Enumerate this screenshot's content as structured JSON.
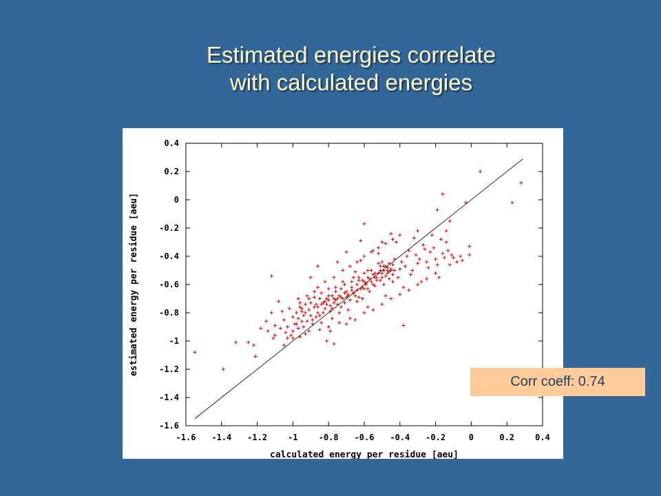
{
  "slide": {
    "title_line1": "Estimated energies correlate",
    "title_line2": "with calculated energies",
    "corr_label": "Corr coeff: 0.74"
  },
  "colors": {
    "background": "#336699",
    "title": "#ffffcc",
    "points": "#dd0000",
    "fit_line": "#000000",
    "corr_box": "#ffcc99"
  },
  "chart_data": {
    "type": "scatter",
    "xlabel": "calculated energy per residue [aeu]",
    "ylabel": "estimated energy per residue [aeu]",
    "xlim": [
      -1.6,
      0.4
    ],
    "ylim": [
      -1.6,
      0.4
    ],
    "xticks": [
      "-1.6",
      "-1.4",
      "-1.2",
      "-1",
      "-0.8",
      "-0.6",
      "-0.4",
      "-0.2",
      "0",
      "0.2",
      "0.4"
    ],
    "yticks": [
      "0.4",
      "0.2",
      "0",
      "-0.2",
      "-0.4",
      "-0.6",
      "-0.8",
      "-1",
      "-1.2",
      "-1.4",
      "-1.6"
    ],
    "marker": "+",
    "fit_line": {
      "x": [
        -1.55,
        0.29
      ],
      "y": [
        -1.55,
        0.29
      ]
    },
    "series": [
      {
        "points": [
          [
            -1.55,
            -1.08
          ],
          [
            -1.39,
            -1.2
          ],
          [
            -1.32,
            -1.01
          ],
          [
            -1.25,
            -1.01
          ],
          [
            -1.22,
            -1.03
          ],
          [
            -1.21,
            -1.11
          ],
          [
            -1.12,
            -0.54
          ],
          [
            -0.81,
            -1.0
          ],
          [
            -0.77,
            -1.02
          ],
          [
            0.05,
            0.2
          ],
          [
            0.23,
            -0.02
          ],
          [
            0.28,
            0.12
          ],
          [
            -0.16,
            0.04
          ],
          [
            -0.03,
            -0.02
          ],
          [
            -0.19,
            -0.07
          ],
          [
            -0.6,
            -0.17
          ],
          [
            -0.12,
            -0.15
          ],
          [
            -0.01,
            -0.33
          ],
          [
            -0.01,
            -0.39
          ],
          [
            -0.38,
            -0.89
          ],
          [
            -0.05,
            -0.43
          ],
          [
            -0.14,
            -0.22
          ],
          [
            -1.18,
            -0.91
          ],
          [
            -1.15,
            -0.86
          ],
          [
            -1.1,
            -0.96
          ],
          [
            -1.05,
            -1.03
          ],
          [
            -1.0,
            -0.93
          ],
          [
            -0.97,
            -0.7
          ],
          [
            -0.98,
            -0.88
          ],
          [
            -0.95,
            -0.79
          ],
          [
            -0.93,
            -0.95
          ],
          [
            -0.9,
            -0.73
          ],
          [
            -0.88,
            -0.65
          ],
          [
            -0.85,
            -0.82
          ],
          [
            -0.82,
            -0.72
          ],
          [
            -0.8,
            -0.9
          ],
          [
            -0.78,
            -0.77
          ],
          [
            -0.76,
            -0.62
          ],
          [
            -0.74,
            -0.8
          ],
          [
            -0.72,
            -0.58
          ],
          [
            -0.7,
            -0.69
          ],
          [
            -0.68,
            -0.84
          ],
          [
            -0.66,
            -0.55
          ],
          [
            -0.64,
            -0.72
          ],
          [
            -0.62,
            -0.43
          ],
          [
            -0.6,
            -0.63
          ],
          [
            -0.58,
            -0.76
          ],
          [
            -0.56,
            -0.5
          ],
          [
            -0.54,
            -0.61
          ],
          [
            -0.52,
            -0.38
          ],
          [
            -0.5,
            -0.55
          ],
          [
            -0.48,
            -0.68
          ],
          [
            -0.46,
            -0.45
          ],
          [
            -0.44,
            -0.58
          ],
          [
            -0.42,
            -0.3
          ],
          [
            -0.4,
            -0.49
          ],
          [
            -0.38,
            -0.62
          ],
          [
            -0.36,
            -0.4
          ],
          [
            -0.34,
            -0.53
          ],
          [
            -0.32,
            -0.27
          ],
          [
            -0.3,
            -0.45
          ],
          [
            -0.28,
            -0.58
          ],
          [
            -0.26,
            -0.35
          ],
          [
            -0.24,
            -0.48
          ],
          [
            -0.22,
            -0.25
          ],
          [
            -0.2,
            -0.42
          ],
          [
            -0.18,
            -0.55
          ],
          [
            -0.16,
            -0.38
          ],
          [
            -0.14,
            -0.3
          ],
          [
            -0.12,
            -0.46
          ],
          [
            -0.1,
            -0.41
          ],
          [
            -0.08,
            -0.44
          ],
          [
            -0.06,
            -0.4
          ],
          [
            -0.3,
            -0.22
          ],
          [
            -0.45,
            -0.24
          ],
          [
            -0.5,
            -0.3
          ],
          [
            -0.55,
            -0.36
          ],
          [
            -0.62,
            -0.29
          ],
          [
            -0.7,
            -0.37
          ],
          [
            -0.75,
            -0.44
          ],
          [
            -0.86,
            -0.47
          ],
          [
            -0.9,
            -0.55
          ],
          [
            -1.08,
            -0.72
          ],
          [
            -1.05,
            -0.85
          ],
          [
            -1.02,
            -0.77
          ],
          [
            -0.95,
            -0.86
          ],
          [
            -0.92,
            -0.68
          ],
          [
            -0.87,
            -0.74
          ],
          [
            -0.84,
            -0.87
          ],
          [
            -0.8,
            -0.68
          ],
          [
            -0.78,
            -0.84
          ],
          [
            -0.76,
            -0.71
          ],
          [
            -0.73,
            -0.76
          ],
          [
            -0.71,
            -0.66
          ],
          [
            -0.69,
            -0.78
          ],
          [
            -0.67,
            -0.64
          ],
          [
            -0.65,
            -0.68
          ],
          [
            -0.63,
            -0.57
          ],
          [
            -0.61,
            -0.7
          ],
          [
            -0.59,
            -0.59
          ],
          [
            -0.57,
            -0.65
          ],
          [
            -0.55,
            -0.53
          ],
          [
            -0.53,
            -0.57
          ],
          [
            -0.51,
            -0.47
          ],
          [
            -0.49,
            -0.6
          ],
          [
            -0.47,
            -0.52
          ],
          [
            -0.45,
            -0.49
          ],
          [
            -0.43,
            -0.42
          ],
          [
            -0.41,
            -0.55
          ],
          [
            -0.39,
            -0.44
          ],
          [
            -0.37,
            -0.47
          ],
          [
            -0.35,
            -0.36
          ],
          [
            -0.33,
            -0.5
          ],
          [
            -0.31,
            -0.39
          ],
          [
            -0.29,
            -0.42
          ],
          [
            -0.27,
            -0.32
          ],
          [
            -0.25,
            -0.44
          ],
          [
            -0.23,
            -0.37
          ],
          [
            -0.21,
            -0.34
          ],
          [
            -0.19,
            -0.46
          ],
          [
            -0.17,
            -0.28
          ],
          [
            -0.15,
            -0.41
          ],
          [
            -0.13,
            -0.36
          ],
          [
            -0.11,
            -0.39
          ],
          [
            -1.12,
            -0.8
          ],
          [
            -1.1,
            -0.89
          ],
          [
            -1.06,
            -0.79
          ],
          [
            -1.03,
            -0.9
          ],
          [
            -1.0,
            -0.83
          ],
          [
            -0.96,
            -0.76
          ],
          [
            -0.94,
            -0.82
          ],
          [
            -0.91,
            -0.78
          ],
          [
            -0.89,
            -0.85
          ],
          [
            -0.86,
            -0.76
          ],
          [
            -0.83,
            -0.8
          ],
          [
            -0.81,
            -0.74
          ],
          [
            -0.79,
            -0.79
          ],
          [
            -0.77,
            -0.73
          ],
          [
            -0.75,
            -0.7
          ],
          [
            -0.73,
            -0.69
          ],
          [
            -0.71,
            -0.73
          ],
          [
            -0.69,
            -0.67
          ],
          [
            -0.68,
            -0.71
          ],
          [
            -0.66,
            -0.66
          ],
          [
            -0.64,
            -0.64
          ],
          [
            -0.63,
            -0.69
          ],
          [
            -0.61,
            -0.62
          ],
          [
            -0.6,
            -0.58
          ],
          [
            -0.58,
            -0.63
          ],
          [
            -0.57,
            -0.56
          ],
          [
            -0.55,
            -0.6
          ],
          [
            -0.54,
            -0.55
          ],
          [
            -0.52,
            -0.52
          ],
          [
            -0.51,
            -0.57
          ],
          [
            -0.49,
            -0.5
          ],
          [
            -0.48,
            -0.54
          ],
          [
            -0.47,
            -0.48
          ],
          [
            -0.46,
            -0.51
          ],
          [
            -0.44,
            -0.46
          ],
          [
            -0.43,
            -0.5
          ],
          [
            -0.97,
            -0.84
          ],
          [
            -0.95,
            -0.77
          ],
          [
            -0.93,
            -0.8
          ],
          [
            -0.9,
            -0.82
          ],
          [
            -0.88,
            -0.76
          ],
          [
            -0.86,
            -0.8
          ],
          [
            -0.84,
            -0.74
          ],
          [
            -0.82,
            -0.77
          ],
          [
            -0.8,
            -0.71
          ],
          [
            -0.79,
            -0.75
          ],
          [
            -0.77,
            -0.7
          ],
          [
            -0.75,
            -0.74
          ],
          [
            -0.74,
            -0.68
          ],
          [
            -0.72,
            -0.7
          ],
          [
            -0.7,
            -0.65
          ],
          [
            -0.69,
            -0.68
          ],
          [
            -0.67,
            -0.62
          ],
          [
            -0.66,
            -0.66
          ],
          [
            -0.64,
            -0.6
          ],
          [
            -0.62,
            -0.63
          ],
          [
            -0.61,
            -0.57
          ],
          [
            -0.59,
            -0.6
          ],
          [
            -0.58,
            -0.55
          ],
          [
            -0.56,
            -0.58
          ],
          [
            -0.54,
            -0.52
          ],
          [
            -0.53,
            -0.55
          ],
          [
            -0.51,
            -0.5
          ],
          [
            -0.5,
            -0.52
          ],
          [
            -0.48,
            -0.47
          ],
          [
            -0.47,
            -0.5
          ],
          [
            -0.45,
            -0.5
          ],
          [
            -0.44,
            -0.53
          ],
          [
            -0.46,
            -0.56
          ],
          [
            -0.49,
            -0.47
          ],
          [
            -0.52,
            -0.45
          ],
          [
            -0.5,
            -0.44
          ],
          [
            -0.58,
            -0.5
          ],
          [
            -0.6,
            -0.52
          ],
          [
            -0.63,
            -0.55
          ],
          [
            -0.65,
            -0.51
          ],
          [
            -0.67,
            -0.58
          ],
          [
            -0.71,
            -0.6
          ],
          [
            -0.73,
            -0.63
          ],
          [
            -0.76,
            -0.65
          ],
          [
            -0.78,
            -0.68
          ],
          [
            -0.81,
            -0.7
          ],
          [
            -0.83,
            -0.73
          ],
          [
            -0.85,
            -0.7
          ],
          [
            -0.87,
            -0.83
          ],
          [
            -0.89,
            -0.88
          ],
          [
            -0.92,
            -0.86
          ],
          [
            -0.94,
            -0.9
          ],
          [
            -0.97,
            -0.91
          ],
          [
            -0.99,
            -0.88
          ],
          [
            -1.01,
            -0.96
          ],
          [
            -1.03,
            -0.98
          ],
          [
            -0.96,
            -0.97
          ],
          [
            -0.91,
            -0.93
          ],
          [
            -0.85,
            -0.92
          ],
          [
            -0.79,
            -0.93
          ],
          [
            -0.74,
            -0.87
          ],
          [
            -0.7,
            -0.88
          ],
          [
            -0.65,
            -0.85
          ],
          [
            -0.6,
            -0.8
          ],
          [
            -0.55,
            -0.78
          ],
          [
            -0.5,
            -0.74
          ],
          [
            -0.45,
            -0.7
          ],
          [
            -0.4,
            -0.67
          ],
          [
            -0.35,
            -0.64
          ],
          [
            -0.3,
            -0.6
          ],
          [
            -0.25,
            -0.56
          ],
          [
            -0.2,
            -0.52
          ],
          [
            -0.86,
            -0.62
          ],
          [
            -0.82,
            -0.58
          ],
          [
            -0.77,
            -0.55
          ],
          [
            -0.72,
            -0.5
          ],
          [
            -0.68,
            -0.47
          ],
          [
            -0.64,
            -0.44
          ],
          [
            -0.6,
            -0.4
          ],
          [
            -0.56,
            -0.37
          ],
          [
            -0.52,
            -0.34
          ],
          [
            -0.48,
            -0.31
          ],
          [
            -0.44,
            -0.28
          ],
          [
            -0.4,
            -0.25
          ],
          [
            -1.14,
            -0.93
          ],
          [
            -1.11,
            -0.98
          ],
          [
            -1.07,
            -0.91
          ],
          [
            -1.04,
            -0.94
          ],
          [
            -1.0,
            -0.98
          ],
          [
            -0.98,
            -0.8
          ],
          [
            -0.96,
            -0.73
          ],
          [
            -0.93,
            -0.74
          ],
          [
            -0.91,
            -0.7
          ],
          [
            -0.88,
            -0.69
          ],
          [
            -0.84,
            -0.66
          ],
          [
            -0.8,
            -0.63
          ]
        ]
      }
    ]
  }
}
